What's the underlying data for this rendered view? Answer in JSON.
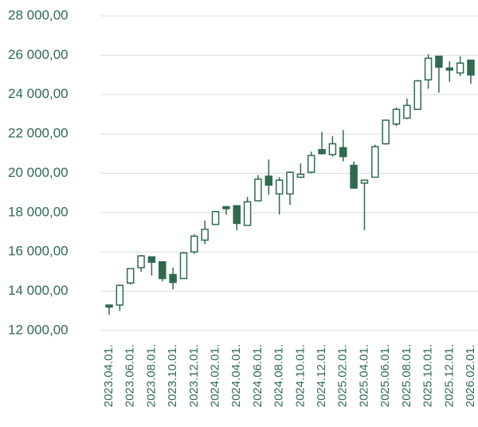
{
  "chart_data": {
    "type": "candlestick",
    "color": "#2f6a4f",
    "categories": [
      "2023.04.01.",
      null,
      "2023.06.01.",
      null,
      "2023.08.01.",
      null,
      "2023.10.01.",
      null,
      "2023.12.01.",
      null,
      "2024.02.01.",
      null,
      "2024.04.01.",
      null,
      "2024.06.01.",
      null,
      "2024.08.01.",
      null,
      "2024.10.01.",
      null,
      "2024.12.01.",
      null,
      "2025.02.01.",
      null,
      "2025.04.01.",
      null,
      "2025.06.01.",
      null,
      "2025.08.01.",
      null,
      "2025.10.01.",
      null,
      "2025.12.01.",
      null,
      "2026.02.01."
    ],
    "open": [
      13300,
      13300,
      14420,
      15200,
      15750,
      15500,
      14850,
      14650,
      16000,
      16600,
      17400,
      18300,
      18350,
      17350,
      18600,
      19850,
      18950,
      18950,
      19800,
      20050,
      21200,
      20950,
      21300,
      20400,
      19500,
      19800,
      21500,
      22500,
      22800,
      23250,
      24750,
      25950,
      25350,
      25100,
      25750
    ],
    "high": [
      13300,
      14350,
      15150,
      15850,
      15750,
      15500,
      15200,
      16000,
      16900,
      17600,
      18050,
      18300,
      18350,
      18800,
      19900,
      20700,
      19800,
      20100,
      20500,
      21100,
      22100,
      21900,
      22200,
      20600,
      19650,
      21450,
      22700,
      23350,
      23800,
      24750,
      26050,
      25950,
      25700,
      25950,
      25750
    ],
    "low": [
      12800,
      13000,
      14350,
      15000,
      14800,
      14500,
      14100,
      14650,
      15900,
      16400,
      17400,
      17900,
      17100,
      17350,
      18600,
      18900,
      17900,
      18400,
      19750,
      20000,
      20950,
      20850,
      20600,
      19200,
      17100,
      19800,
      21450,
      22400,
      22750,
      23250,
      24300,
      24100,
      24650,
      24950,
      24550
    ],
    "close": [
      13200,
      14300,
      15150,
      15800,
      15480,
      14650,
      14450,
      15950,
      16800,
      17150,
      18050,
      18200,
      17450,
      18550,
      19700,
      19400,
      19650,
      20050,
      19950,
      20900,
      21000,
      21500,
      20850,
      19250,
      19650,
      21350,
      22700,
      23250,
      23450,
      24700,
      25850,
      25400,
      25250,
      25600,
      25000
    ],
    "ylim": [
      12000,
      28000
    ],
    "yticks": [
      {
        "value": 12000,
        "label": "12 000,00"
      },
      {
        "value": 14000,
        "label": "14 000,00"
      },
      {
        "value": 16000,
        "label": "16 000,00"
      },
      {
        "value": 18000,
        "label": "18 000,00"
      },
      {
        "value": 20000,
        "label": "20 000,00"
      },
      {
        "value": 22000,
        "label": "22 000,00"
      },
      {
        "value": 24000,
        "label": "24 000,00"
      },
      {
        "value": 26000,
        "label": "26 000,00"
      },
      {
        "value": 28000,
        "label": "28 000,00"
      }
    ],
    "grid": true
  }
}
